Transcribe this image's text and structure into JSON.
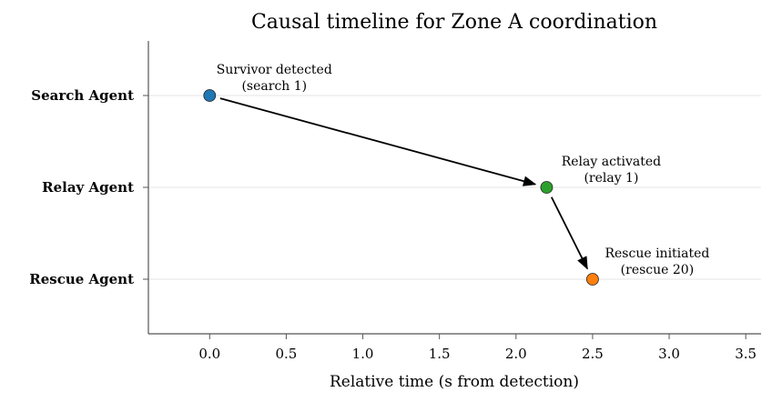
{
  "chart_data": {
    "type": "scatter",
    "title": "Causal timeline for Zone A coordination",
    "xlabel": "Relative time (s from detection)",
    "ylabel": "",
    "xlim": [
      -0.4,
      3.6
    ],
    "xticks": [
      0.0,
      0.5,
      1.0,
      1.5,
      2.0,
      2.5,
      3.0,
      3.5
    ],
    "xtick_labels": [
      "0.0",
      "0.5",
      "1.0",
      "1.5",
      "2.0",
      "2.5",
      "3.0",
      "3.5"
    ],
    "categories": [
      "Search Agent",
      "Relay Agent",
      "Rescue Agent"
    ],
    "grid": "horizontal",
    "points": [
      {
        "agent": "Search Agent",
        "x": 0.0,
        "color": "#1f77b4",
        "label_line1": "Survivor detected",
        "label_line2": "(search 1)"
      },
      {
        "agent": "Relay Agent",
        "x": 2.2,
        "color": "#2ca02c",
        "label_line1": "Relay activated",
        "label_line2": "(relay 1)"
      },
      {
        "agent": "Rescue Agent",
        "x": 2.5,
        "color": "#ff7f0e",
        "label_line1": "Rescue initiated",
        "label_line2": "(rescue 20)"
      }
    ],
    "arrows": [
      {
        "from": 0,
        "to": 1
      },
      {
        "from": 1,
        "to": 2
      }
    ]
  }
}
